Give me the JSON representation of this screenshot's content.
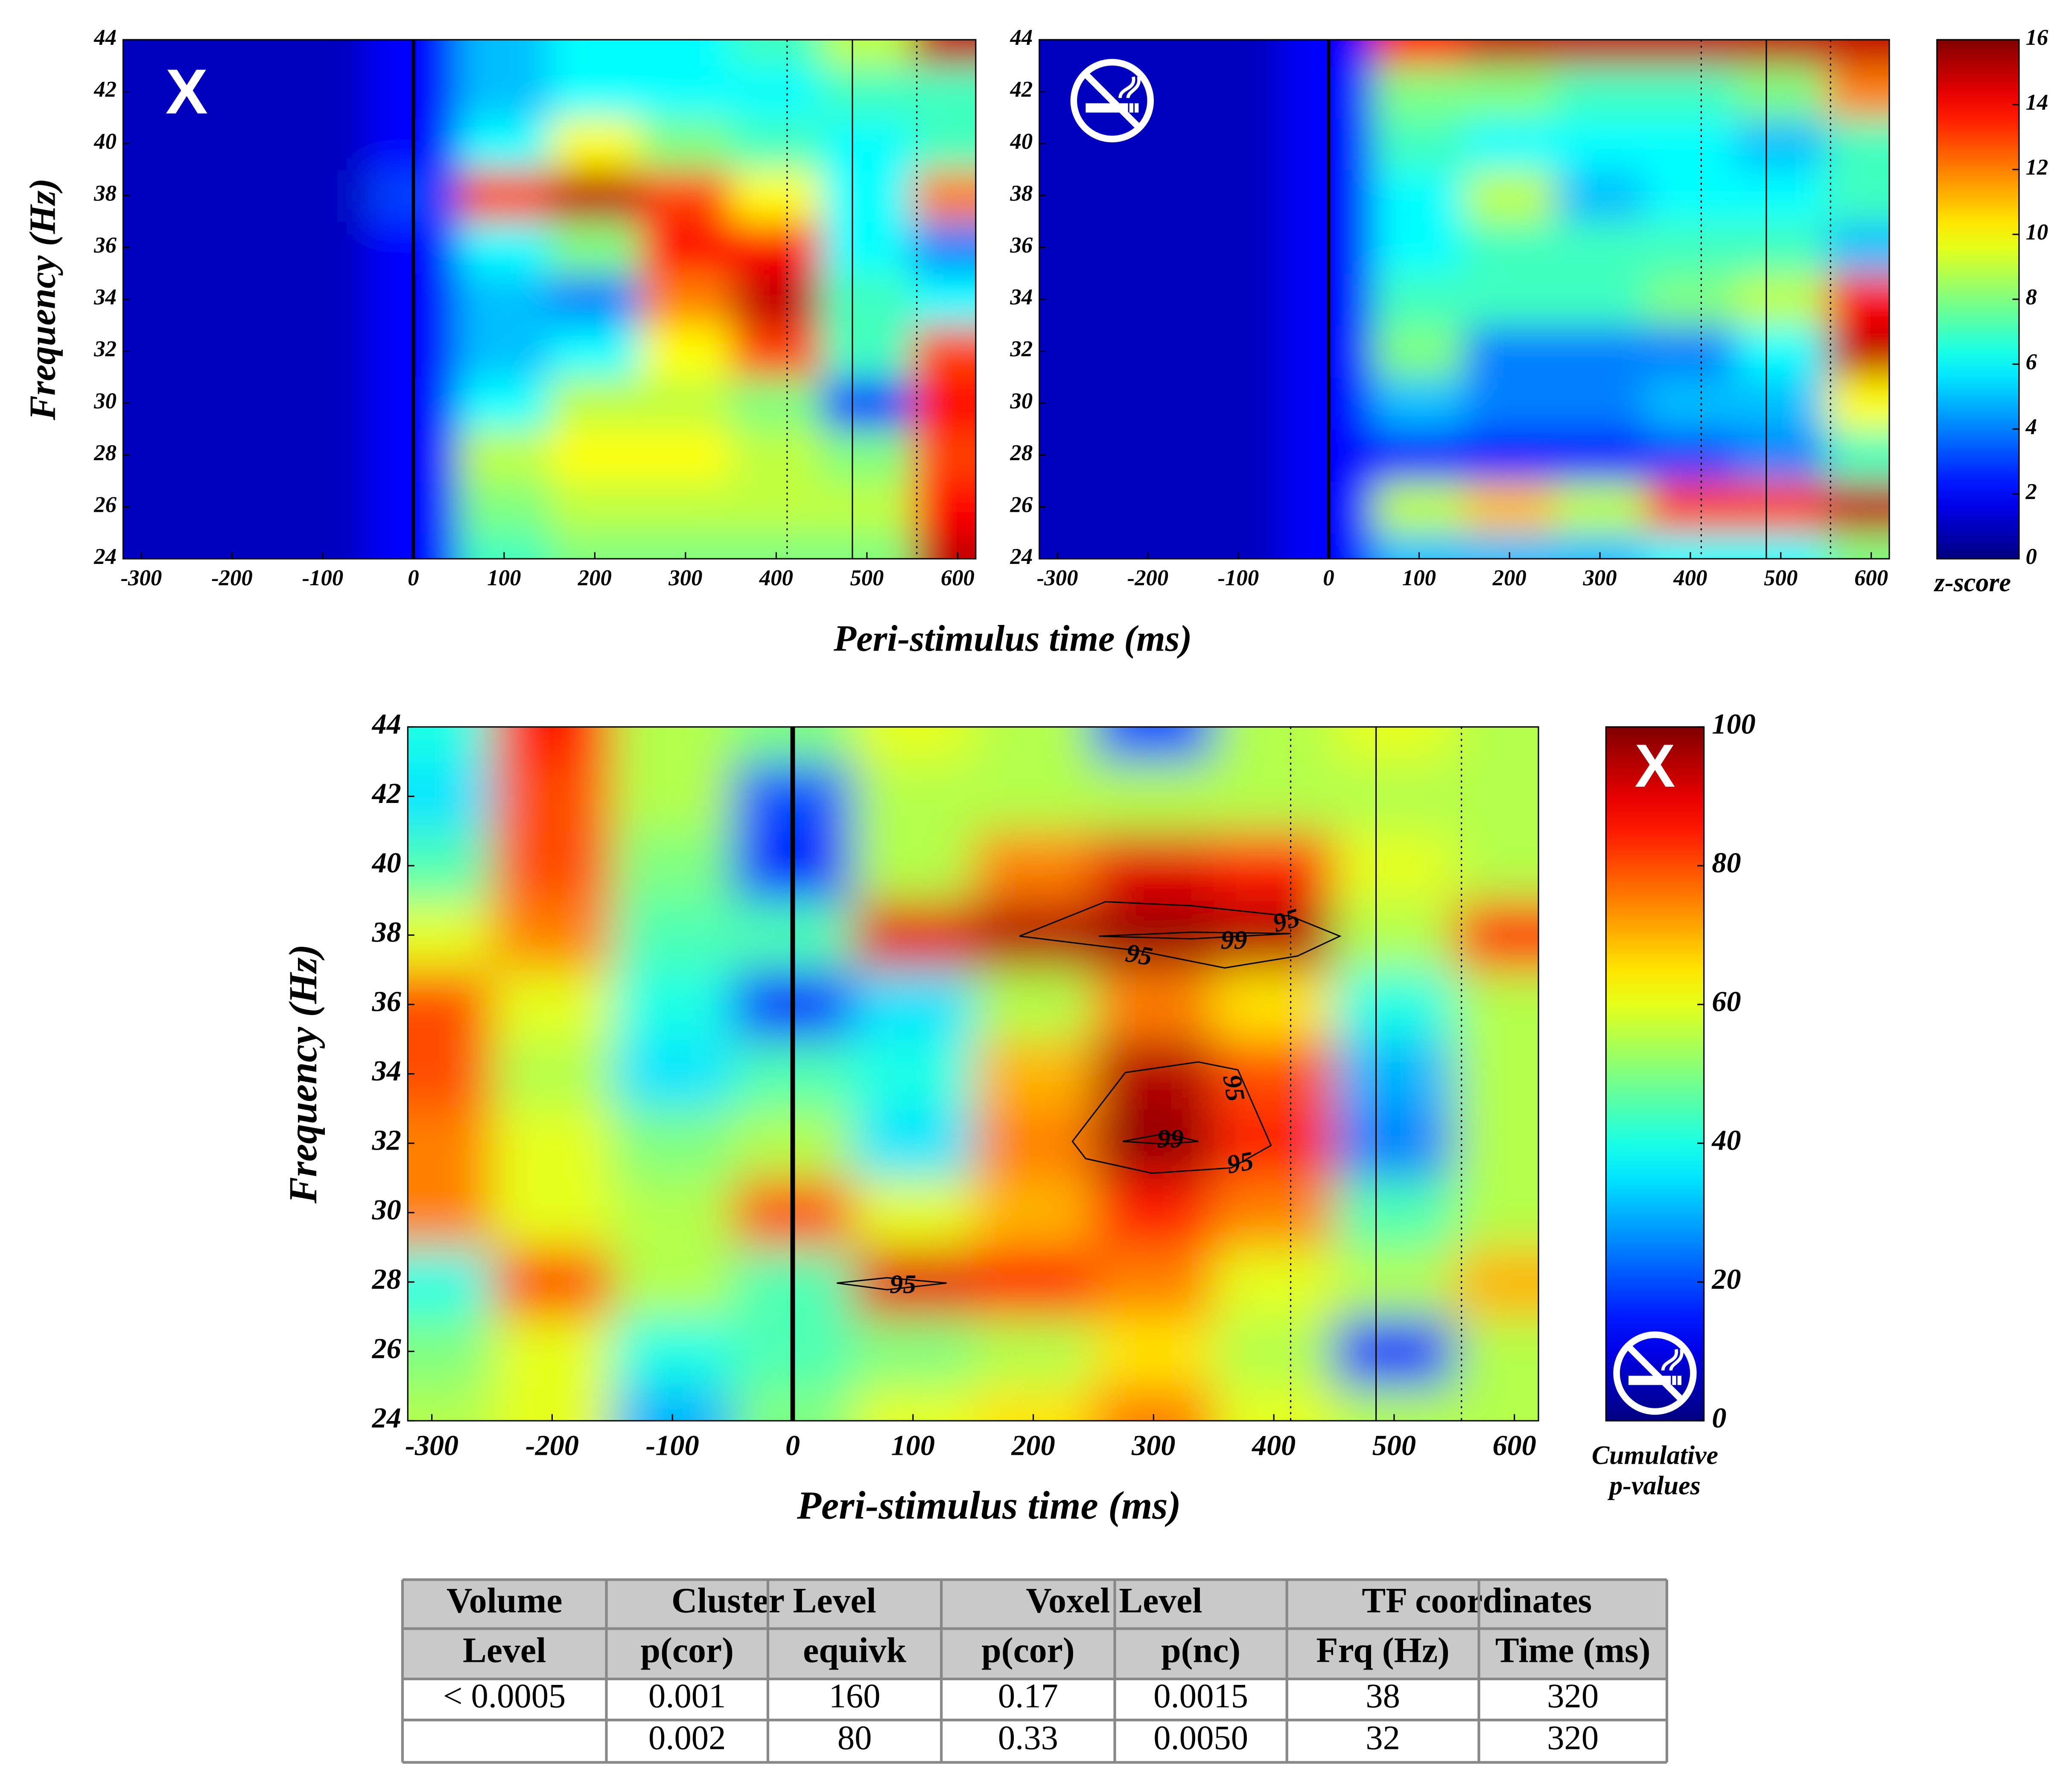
{
  "chart_data": [
    {
      "type": "heatmap",
      "colormap": "jet",
      "panel_label": "X",
      "y_label": "Frequency (Hz)",
      "x_label": "Peri-stimulus time (ms)",
      "x": [
        -300,
        -200,
        -100,
        0,
        100,
        200,
        300,
        400,
        500,
        600
      ],
      "y": [
        24,
        26,
        28,
        30,
        32,
        34,
        36,
        38,
        40,
        42,
        44
      ],
      "values": [
        [
          1,
          1,
          1,
          2,
          7,
          8,
          8,
          8,
          8,
          15
        ],
        [
          1,
          1,
          1,
          2,
          8,
          9,
          9,
          9,
          9,
          14
        ],
        [
          1,
          1,
          1,
          2,
          9,
          10,
          10,
          9,
          8,
          13
        ],
        [
          1,
          1,
          1,
          2,
          6,
          9,
          9,
          8,
          3,
          14
        ],
        [
          1,
          1,
          1,
          2,
          5,
          6,
          10,
          13,
          7,
          13
        ],
        [
          1,
          1,
          1,
          2,
          5,
          4,
          12,
          15,
          7,
          6
        ],
        [
          1,
          1,
          1,
          2,
          6,
          8,
          14,
          14,
          6,
          4
        ],
        [
          1,
          1,
          1,
          3,
          13,
          15,
          13,
          10,
          6,
          12
        ],
        [
          1,
          1,
          1,
          2,
          6,
          10,
          8,
          7,
          6,
          7
        ],
        [
          1,
          1,
          1,
          2,
          5,
          6,
          6,
          6,
          7,
          7
        ],
        [
          1,
          1,
          1,
          2,
          5,
          6,
          6,
          7,
          9,
          15
        ]
      ],
      "xlim": [
        -320,
        620
      ],
      "xticks": [
        -300,
        -200,
        -100,
        0,
        100,
        200,
        300,
        400,
        500,
        600
      ],
      "ylim": [
        24,
        44
      ],
      "yticks": [
        24,
        26,
        28,
        30,
        32,
        34,
        36,
        38,
        40,
        42,
        44
      ],
      "zlim": [
        0,
        16
      ],
      "vlines": [
        {
          "x": 0,
          "style": "thick"
        },
        {
          "x": 412,
          "style": "dotted"
        },
        {
          "x": 484,
          "style": "solid"
        },
        {
          "x": 555,
          "style": "dotted"
        }
      ]
    },
    {
      "type": "heatmap",
      "colormap": "jet",
      "x": [
        -300,
        -200,
        -100,
        0,
        100,
        200,
        300,
        400,
        500,
        600
      ],
      "y": [
        24,
        26,
        28,
        30,
        32,
        34,
        36,
        38,
        40,
        42,
        44
      ],
      "values": [
        [
          1,
          1,
          1,
          2,
          5,
          5,
          5,
          6,
          6,
          8
        ],
        [
          1,
          1,
          1,
          2,
          9,
          11,
          9,
          13,
          13,
          15
        ],
        [
          1,
          1,
          1,
          2,
          2,
          2,
          2,
          3,
          4,
          7
        ],
        [
          1,
          1,
          1,
          2,
          5,
          4,
          4,
          5,
          5,
          10
        ],
        [
          1,
          1,
          1,
          2,
          8,
          4,
          4,
          4,
          6,
          15
        ],
        [
          1,
          1,
          1,
          2,
          7,
          7,
          7,
          8,
          9,
          14
        ],
        [
          1,
          1,
          1,
          2,
          6,
          7,
          7,
          7,
          7,
          5
        ],
        [
          1,
          1,
          1,
          2,
          6,
          9,
          5,
          6,
          6,
          7
        ],
        [
          1,
          1,
          1,
          2,
          7,
          6,
          6,
          6,
          5,
          7
        ],
        [
          1,
          1,
          1,
          2,
          8,
          8,
          7,
          7,
          8,
          12
        ],
        [
          1,
          1,
          1,
          2,
          14,
          15,
          15,
          15,
          15,
          15
        ]
      ],
      "xlim": [
        -320,
        620
      ],
      "xticks": [
        -300,
        -200,
        -100,
        0,
        100,
        200,
        300,
        400,
        500,
        600
      ],
      "ylim": [
        24,
        44
      ],
      "yticks": [
        24,
        26,
        28,
        30,
        32,
        34,
        36,
        38,
        40,
        42,
        44
      ],
      "zlim": [
        0,
        16
      ],
      "zticks": [
        0,
        2,
        4,
        6,
        8,
        10,
        12,
        14,
        16
      ],
      "colorbar": true,
      "colorbar_label": [
        "z-score"
      ],
      "vlines": [
        {
          "x": 0,
          "style": "thick"
        },
        {
          "x": 412,
          "style": "dotted"
        },
        {
          "x": 484,
          "style": "solid"
        },
        {
          "x": 555,
          "style": "dotted"
        }
      ]
    },
    {
      "type": "heatmap",
      "colormap": "jet",
      "y_label": "Frequency (Hz)",
      "x_label": "Peri-stimulus time (ms)",
      "colorbar_top_label": "X",
      "x": [
        -300,
        -200,
        -100,
        0,
        100,
        200,
        300,
        400,
        500,
        600
      ],
      "y": [
        24,
        26,
        28,
        30,
        32,
        34,
        36,
        38,
        40,
        42,
        44
      ],
      "values": [
        [
          55,
          60,
          30,
          50,
          60,
          65,
          75,
          60,
          55,
          55
        ],
        [
          50,
          60,
          40,
          45,
          50,
          55,
          65,
          55,
          15,
          55
        ],
        [
          40,
          80,
          55,
          45,
          90,
          85,
          75,
          60,
          55,
          70
        ],
        [
          75,
          60,
          55,
          80,
          60,
          70,
          85,
          75,
          45,
          55
        ],
        [
          75,
          60,
          50,
          55,
          35,
          75,
          98,
          85,
          25,
          55
        ],
        [
          80,
          55,
          35,
          45,
          40,
          70,
          95,
          80,
          30,
          55
        ],
        [
          80,
          60,
          40,
          15,
          35,
          55,
          75,
          65,
          40,
          55
        ],
        [
          60,
          75,
          45,
          45,
          90,
          95,
          98,
          95,
          55,
          85
        ],
        [
          45,
          80,
          50,
          15,
          55,
          75,
          90,
          85,
          60,
          55
        ],
        [
          35,
          80,
          55,
          20,
          55,
          55,
          55,
          55,
          55,
          55
        ],
        [
          40,
          85,
          55,
          50,
          60,
          55,
          20,
          55,
          60,
          55
        ]
      ],
      "xlim": [
        -320,
        620
      ],
      "xticks": [
        -300,
        -200,
        -100,
        0,
        100,
        200,
        300,
        400,
        500,
        600
      ],
      "ylim": [
        24,
        44
      ],
      "yticks": [
        24,
        26,
        28,
        30,
        32,
        34,
        36,
        38,
        40,
        42,
        44
      ],
      "zlim": [
        0,
        100
      ],
      "zticks": [
        0,
        20,
        40,
        60,
        80,
        100
      ],
      "colorbar": true,
      "colorbar_label": [
        "Cumulative",
        "p-values"
      ],
      "contour_labels": [
        "95",
        "99",
        "95",
        "95",
        "99",
        "95",
        "95"
      ],
      "vlines": [
        {
          "x": 0,
          "style": "thick"
        },
        {
          "x": 414,
          "style": "dotted"
        },
        {
          "x": 485,
          "style": "solid"
        },
        {
          "x": 556,
          "style": "dotted"
        }
      ]
    }
  ],
  "table": {
    "header": [
      [
        "Volume",
        "Cluster Level",
        "Voxel Level",
        "TF coordinates"
      ],
      [
        "Level",
        "p(cor)",
        "equivk",
        "p(cor)",
        "p(nc)",
        "Frq (Hz)",
        "Time (ms)"
      ]
    ],
    "rows": [
      [
        "< 0.0005",
        "0.001",
        "160",
        "0.17",
        "0.0015",
        "38",
        "320"
      ],
      [
        null,
        "0.002",
        "80",
        "0.33",
        "0.0050",
        "32",
        "320"
      ]
    ]
  }
}
